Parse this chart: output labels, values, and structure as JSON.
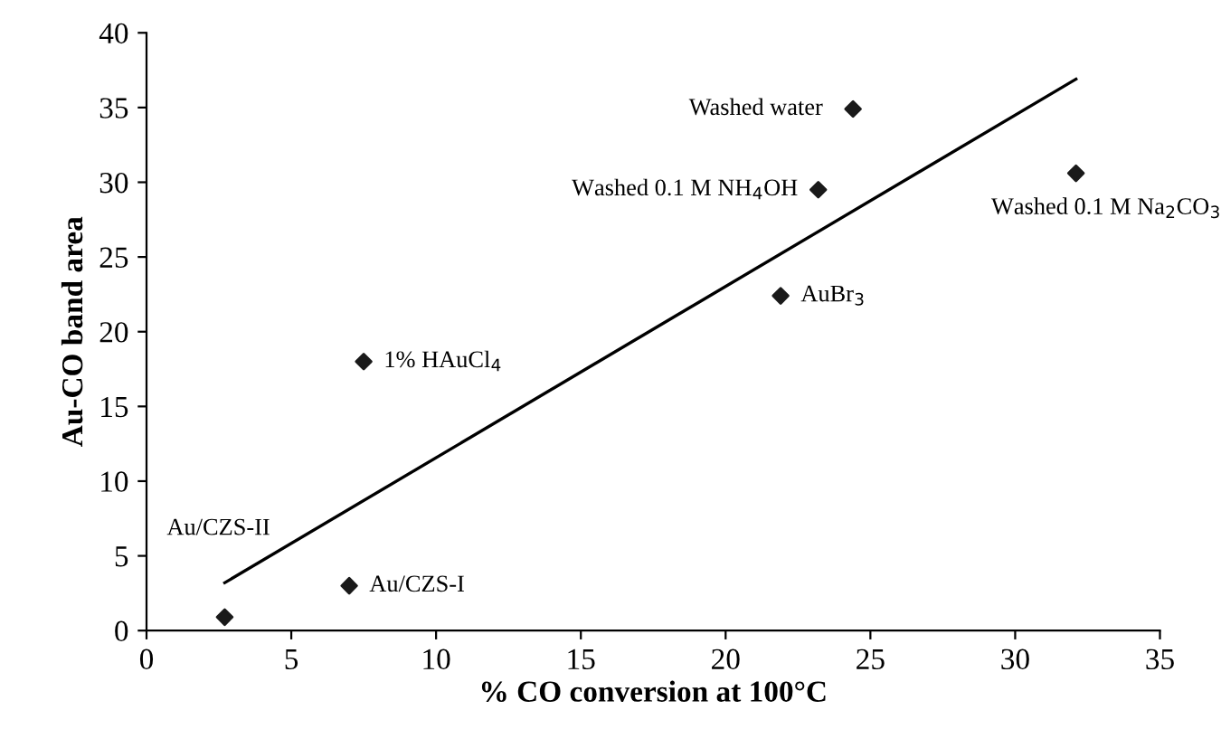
{
  "chart_data": {
    "type": "scatter",
    "xlabel": "% CO conversion at 100°C",
    "ylabel": "Au-CO band area",
    "xlim": [
      0,
      35
    ],
    "ylim": [
      0,
      40
    ],
    "xticks": [
      0,
      5,
      10,
      15,
      20,
      25,
      30,
      35
    ],
    "yticks": [
      0,
      5,
      10,
      15,
      20,
      25,
      30,
      35,
      40
    ],
    "grid": false,
    "legend": false,
    "marker": "diamond",
    "series": [
      {
        "color": "#1a1a1a",
        "x": [
          2.7,
          7.0,
          7.5,
          21.9,
          23.2,
          24.4,
          32.1
        ],
        "values": [
          0.9,
          3.0,
          18.0,
          22.4,
          29.5,
          34.9,
          30.6
        ]
      },
      {
        "type": "line",
        "color": "#000000",
        "x": [
          2.7,
          32.1
        ],
        "values": [
          3.2,
          36.9
        ],
        "marker": "none",
        "line_style": "solid"
      }
    ],
    "annotations": [
      "Au/CZS-II",
      {
        "text": "Au/CZS-I",
        "x": 7.0,
        "y": 3.0
      },
      {
        "text": "1% HAuCl$_{4}$",
        "x": 7.5,
        "y": 18.0
      },
      {
        "text": "AuBr$_{3}$",
        "x": 21.9,
        "y": 22.4
      },
      {
        "text": "Washed 0.1 M NH$_{4}$OH",
        "x": 23.2,
        "y": 29.5
      },
      {
        "text": "Washed water",
        "x": 24.4,
        "y": 34.9
      },
      {
        "text": "Washed 0.1 M Na$_{2}$CO$_{3}$",
        "x": 32.1,
        "y": 30.6
      }
    ]
  }
}
